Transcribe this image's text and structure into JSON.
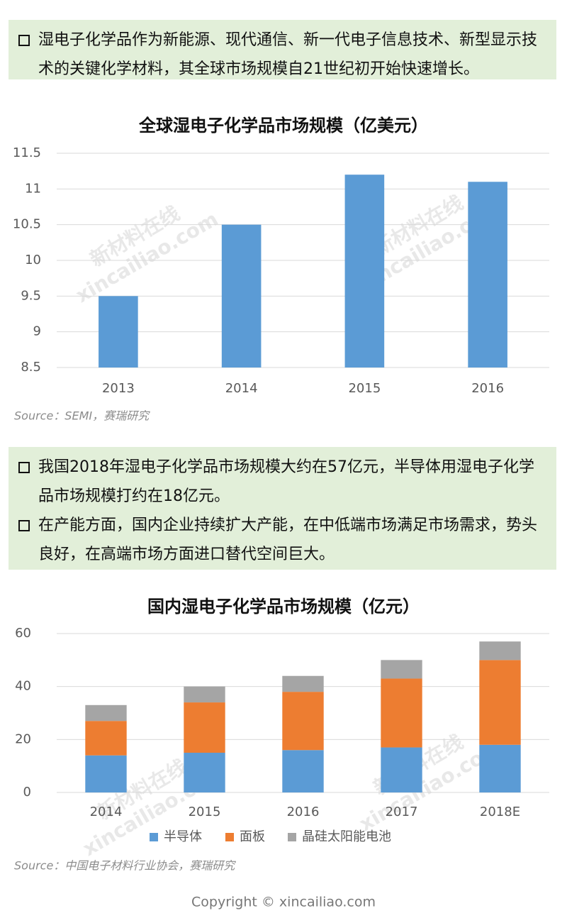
{
  "intro": "湿电子化学品作为新能源、现代通信、新一代电子信息技术、新型显示技术的关键化学材料，其全球市场规模自21世纪初开始快速增长。",
  "notes": [
    "我国2018年湿电子化学品市场规模大约在57亿元，半导体用湿电子化学品市场规模打约在18亿元。",
    "在产能方面，国内企业持续扩大产能，在中低端市场满足市场需求，势头良好，在高端市场方面进口替代空间巨大。"
  ],
  "chart_data": [
    {
      "type": "bar",
      "title": "全球湿电子化学品市场规模（亿美元）",
      "categories": [
        "2013",
        "2014",
        "2015",
        "2016"
      ],
      "values": [
        9.5,
        10.5,
        11.2,
        11.1
      ],
      "color": "#5b9bd5",
      "ylim": [
        8.5,
        11.5
      ],
      "yticks": [
        8.5,
        9,
        9.5,
        10,
        10.5,
        11,
        11.5
      ],
      "grid": true,
      "source": "Source：SEMI，赛瑞研究"
    },
    {
      "type": "bar",
      "stacked": true,
      "title": "国内湿电子化学品市场规模（亿元）",
      "categories": [
        "2014",
        "2015",
        "2016",
        "2017",
        "2018E"
      ],
      "series": [
        {
          "name": "半导体",
          "color": "#5b9bd5",
          "values": [
            14,
            15,
            16,
            17,
            18
          ]
        },
        {
          "name": "面板",
          "color": "#ed7d31",
          "values": [
            13,
            19,
            22,
            26,
            32
          ]
        },
        {
          "name": "晶硅太阳能电池",
          "color": "#a5a5a5",
          "values": [
            6,
            6,
            6,
            7,
            7
          ]
        }
      ],
      "ylim": [
        0,
        60
      ],
      "yticks": [
        0,
        20,
        40,
        60
      ],
      "grid": true,
      "legend": "bottom",
      "source": "Source：中国电子材料行业协会，赛瑞研究"
    }
  ],
  "watermark": [
    "新材料在线",
    "xincailiao.com"
  ],
  "copyright": "Copyright © xincailiao.com"
}
